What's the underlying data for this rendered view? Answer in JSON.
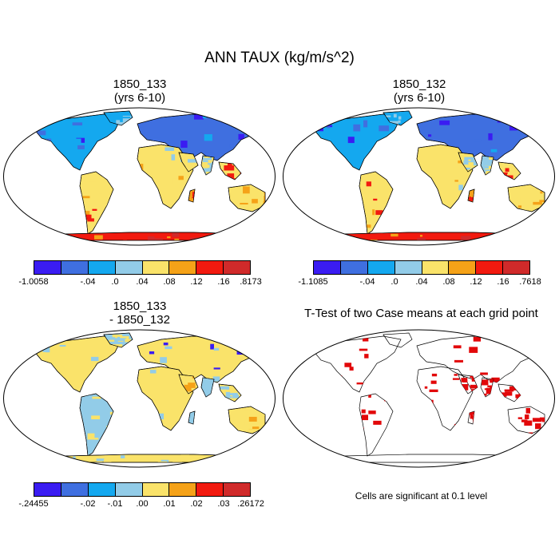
{
  "title": "ANN TAUX (kg/m/s^2)",
  "panels": [
    {
      "title_line1": "1850_133",
      "title_line2": "(yrs 6-10)",
      "colorbar": {
        "labels": [
          "-1.0058",
          "-.04",
          ".0",
          ".04",
          ".08",
          ".12",
          ".16",
          ".8173"
        ]
      }
    },
    {
      "title_line1": "1850_132",
      "title_line2": "(yrs 6-10)",
      "colorbar": {
        "labels": [
          "-1.1085",
          "-.04",
          ".0",
          ".04",
          ".08",
          ".12",
          ".16",
          ".7618"
        ]
      }
    },
    {
      "title_line1": "1850_133",
      "title_line2": "- 1850_132",
      "colorbar": {
        "labels": [
          "-.24455",
          "-.02",
          "-.01",
          ".00",
          ".01",
          ".02",
          ".03",
          ".26172"
        ]
      }
    },
    {
      "title_line1": "T-Test of two Case means at each grid point",
      "title_line2": "",
      "note": "Cells are significant at 0.1 level"
    }
  ],
  "palette": [
    "#3a1cf2",
    "#3f6fe0",
    "#14a8ef",
    "#92cce8",
    "#fae36a",
    "#f5a218",
    "#f21a0f",
    "#d02a2a"
  ],
  "significance_color": "#e2080a"
}
